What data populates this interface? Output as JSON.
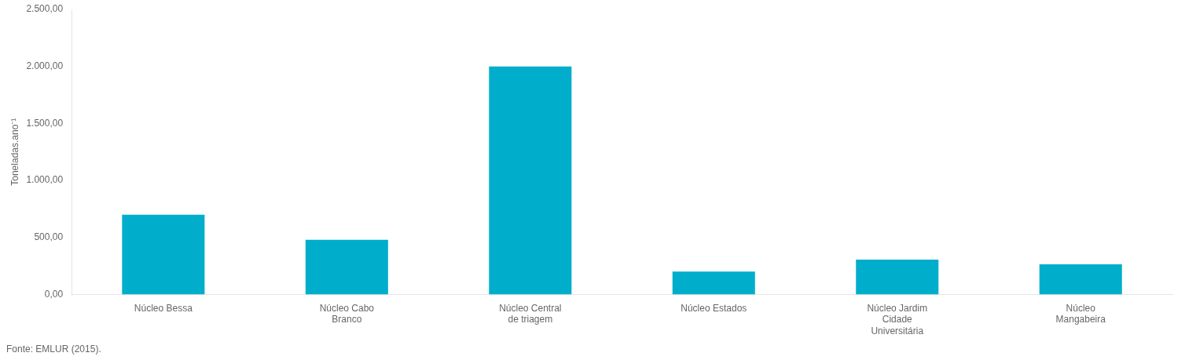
{
  "chart_data": {
    "type": "bar",
    "categories": [
      "Núcleo Bessa",
      "Núcleo Cabo\nBranco",
      "Núcleo Central\nde triagem",
      "Núcleo Estados",
      "Núcleo Jardim\nCidade\nUniversitária",
      "Núcleo\nMangabeira"
    ],
    "values": [
      700,
      480,
      2000,
      200,
      305,
      265
    ],
    "color": "#00AECC",
    "ylabel": "Toneladas.ano⁻¹",
    "ylim": [
      0,
      2500
    ],
    "yticks": [
      {
        "value": 0,
        "label": "0,00"
      },
      {
        "value": 500,
        "label": "500,00"
      },
      {
        "value": 1000,
        "label": "1.000,00"
      },
      {
        "value": 1500,
        "label": "1.500,00"
      },
      {
        "value": 2000,
        "label": "2.000,00"
      },
      {
        "value": 2500,
        "label": "2.500,00"
      }
    ],
    "footnote": "Fonte: EMLUR (2015).",
    "grid": false
  }
}
